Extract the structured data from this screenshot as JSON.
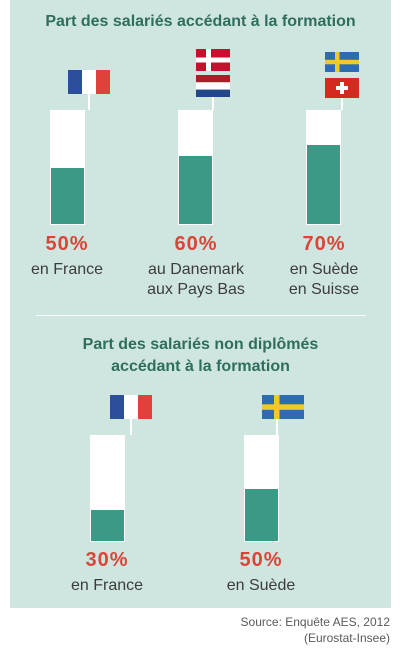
{
  "chart_data": [
    {
      "type": "bar",
      "title": "Part des salariés accédant à la formation",
      "ylim": [
        0,
        100
      ],
      "categories": [
        {
          "value_label": "50%",
          "line1": "en France",
          "line2": "",
          "flags": [
            "france"
          ]
        },
        {
          "value_label": "60%",
          "line1": "au Danemark",
          "line2": "aux Pays Bas",
          "flags": [
            "denmark",
            "netherlands"
          ]
        },
        {
          "value_label": "70%",
          "line1": "en Suède",
          "line2": "en Suisse",
          "flags": [
            "sweden",
            "switzerland"
          ]
        }
      ],
      "values": [
        50,
        60,
        70
      ]
    },
    {
      "type": "bar",
      "title_line1": "Part des salariés non diplômés",
      "title_line2": "accédant à la formation",
      "ylim": [
        0,
        100
      ],
      "categories": [
        {
          "value_label": "30%",
          "line1": "en France",
          "line2": "",
          "flags": [
            "france"
          ]
        },
        {
          "value_label": "50%",
          "line1": "en Suède",
          "line2": "",
          "flags": [
            "sweden"
          ]
        }
      ],
      "values": [
        30,
        50
      ]
    }
  ],
  "source_line1": "Source: Enquête AES, 2012",
  "source_line2": "(Eurostat-Insee)",
  "colors": {
    "background": "#cfe5e0",
    "fill": "#3a9a86",
    "percent": "#d94638",
    "heading": "#2f6e5f"
  }
}
